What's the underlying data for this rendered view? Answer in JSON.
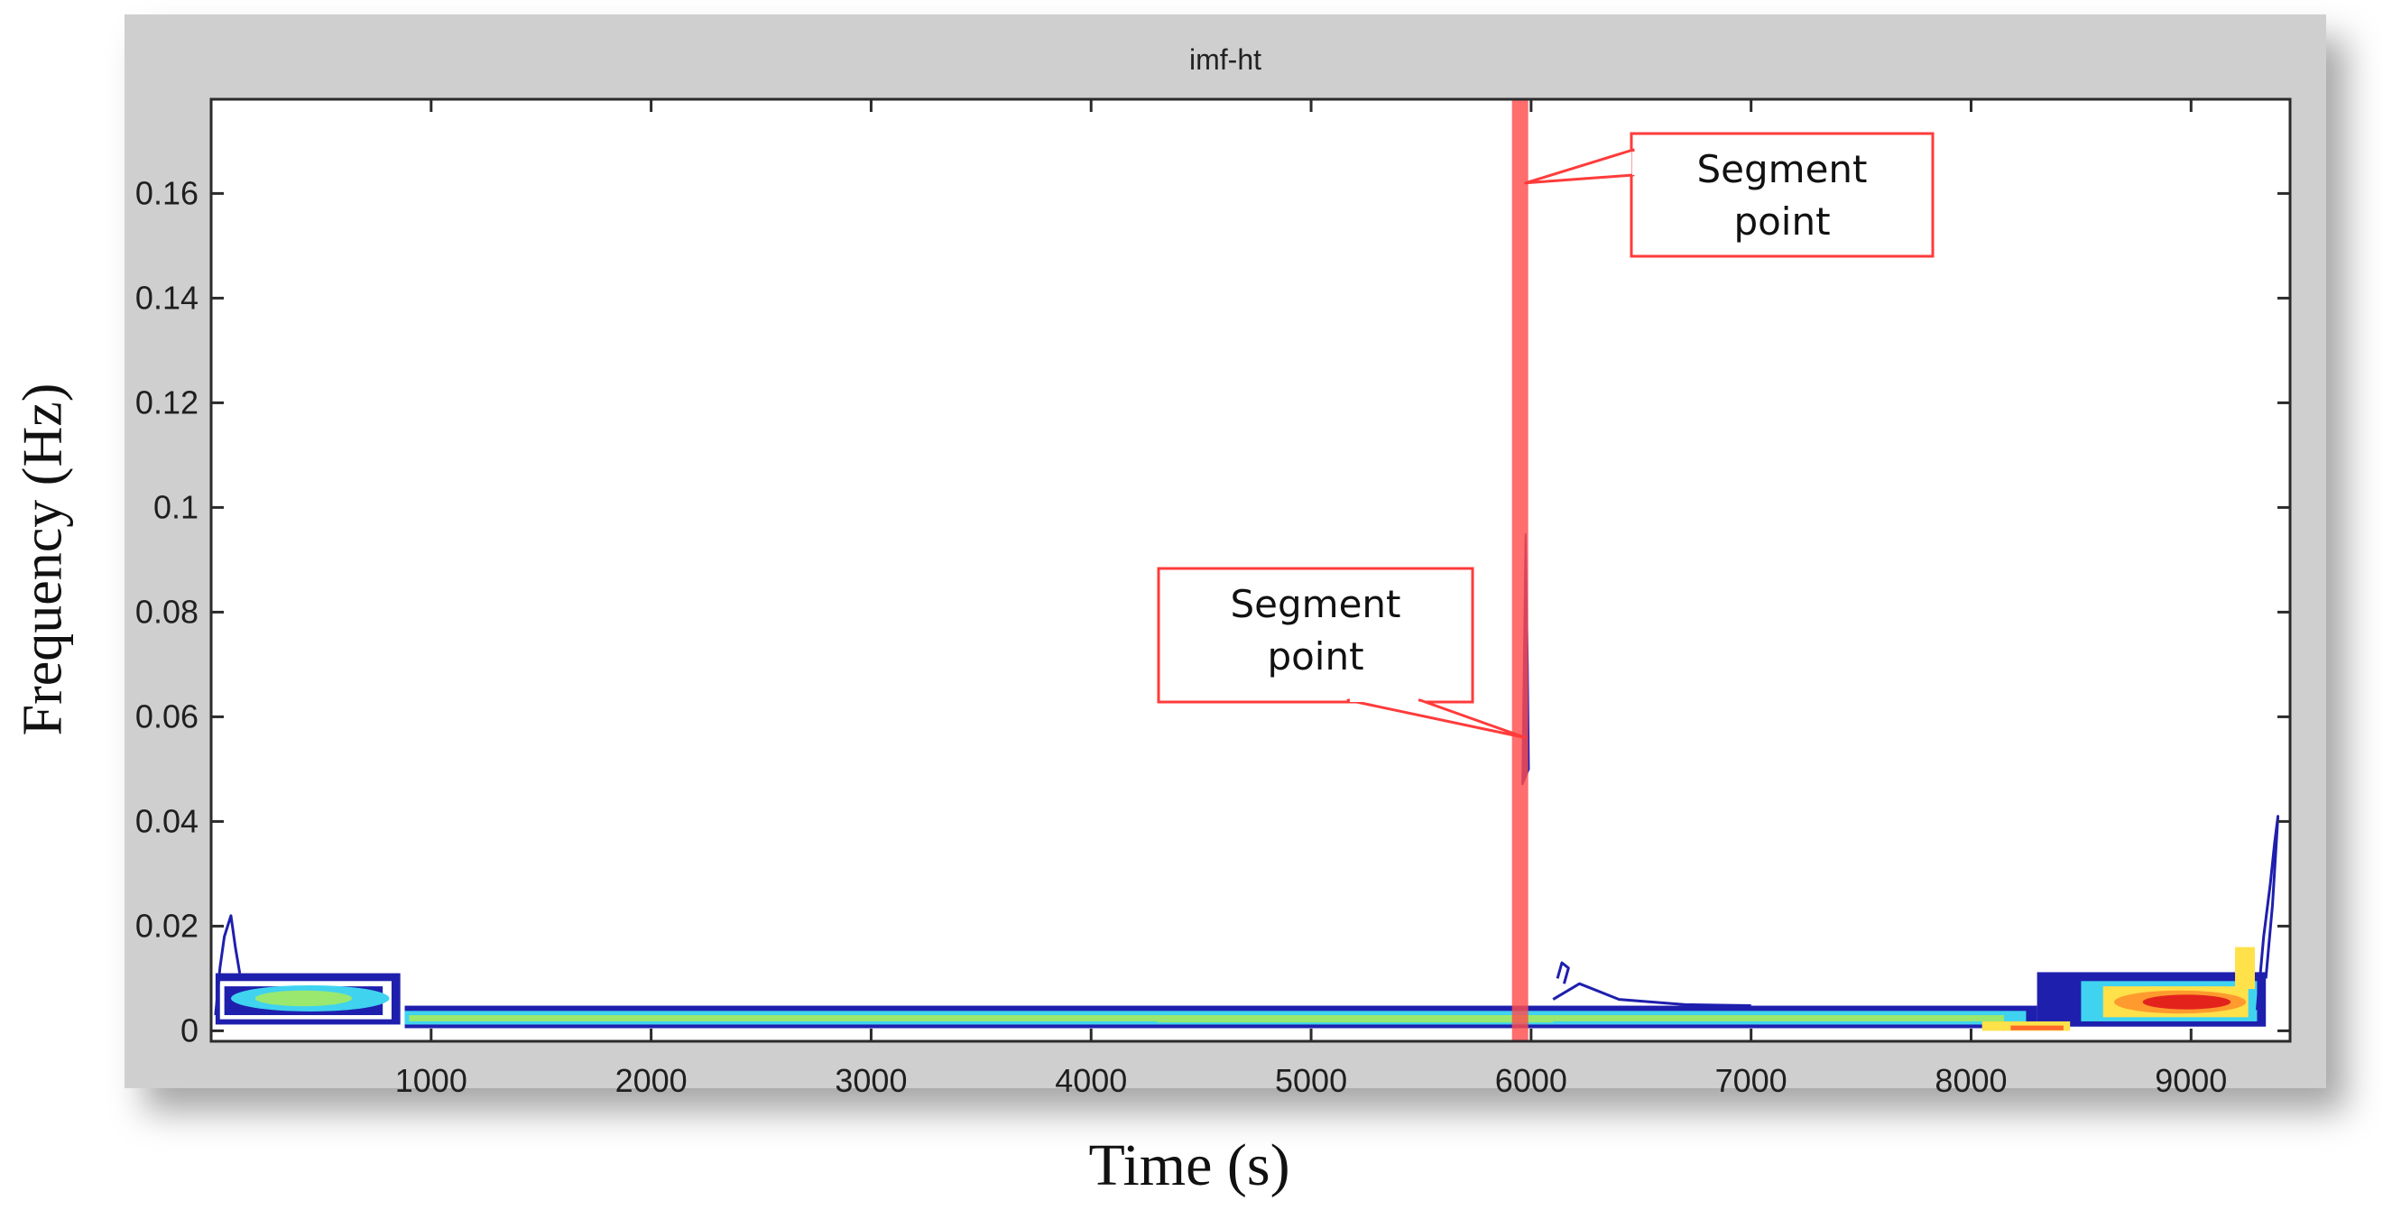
{
  "chart_data": {
    "type": "heatmap",
    "title": "imf-ht",
    "xlabel": "Time (s)",
    "ylabel": "Frequency  (Hz)",
    "xlim": [
      0,
      9450
    ],
    "ylim": [
      -0.002,
      0.178
    ],
    "xticks": [
      1000,
      2000,
      3000,
      4000,
      5000,
      6000,
      7000,
      8000,
      9000
    ],
    "yticks": [
      0,
      0.02,
      0.04,
      0.06,
      0.08,
      0.1,
      0.12,
      0.14,
      0.16
    ],
    "ytick_labels": [
      "0",
      "0.02",
      "0.04",
      "0.06",
      "0.08",
      "0.1",
      "0.12",
      "0.14",
      "0.16"
    ],
    "grid": false,
    "colormap": "jet",
    "energy_regions": [
      {
        "band": "low-frequency trend",
        "t": [
          0,
          9300
        ],
        "f": [
          0.0005,
          0.0045
        ],
        "levels": [
          "blue",
          "cyan",
          "green"
        ]
      },
      {
        "band": "early burst",
        "t": [
          20,
          880
        ],
        "f": [
          0.001,
          0.011
        ],
        "levels": [
          "blue",
          "cyan",
          "yellow"
        ]
      },
      {
        "band": "late burst",
        "t": [
          8250,
          9350
        ],
        "f": [
          0.0,
          0.011
        ],
        "levels": [
          "blue",
          "cyan",
          "yellow",
          "orange",
          "red"
        ]
      },
      {
        "band": "spike near segment point",
        "t": [
          5930,
          5990
        ],
        "f": [
          0.047,
          0.095
        ],
        "levels": [
          "blue"
        ]
      }
    ],
    "segment_line": {
      "x": 5950,
      "color": "#ff4d4d"
    },
    "annotations": [
      {
        "text": "Segment\npoint",
        "lines": [
          "Segment",
          "point"
        ],
        "target": [
          5950,
          0.162
        ]
      },
      {
        "text": "Segment\npoint",
        "lines": [
          "Segment",
          "point"
        ],
        "target": [
          5950,
          0.056
        ]
      }
    ]
  },
  "colors": {
    "window": "#cfcfcf",
    "axes_bg": "#ffffff",
    "segment_line": "#ff4d4d",
    "callout_border": "#ff3b3b",
    "jet_blue": "#1f1fae",
    "jet_cyan": "#3fd3f0",
    "jet_green": "#9ae86e",
    "jet_yellow": "#ffe14a",
    "jet_red": "#e3221c"
  }
}
